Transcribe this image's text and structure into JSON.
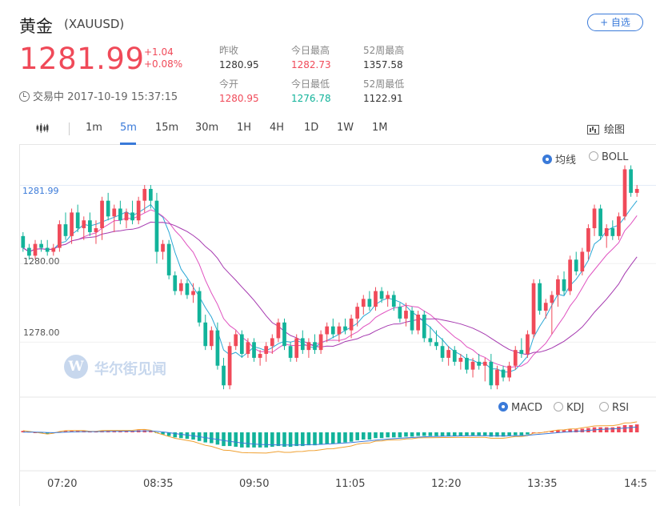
{
  "header": {
    "name": "黄金",
    "code": "(XAUUSD)",
    "watch_label": "+ 自选",
    "price": "1281.99",
    "change": "+1.04",
    "change_pct": "+0.08%",
    "status": "交易中 2017-10-19 15:37:15"
  },
  "stats": [
    {
      "label": "昨收",
      "value": "1280.95"
    },
    {
      "label": "今日最高",
      "value": "1282.73"
    },
    {
      "label": "52周最高",
      "value": "1357.58"
    },
    {
      "label": "今开",
      "value": "1280.95"
    },
    {
      "label": "今日最低",
      "value": "1276.78"
    },
    {
      "label": "52周最低",
      "value": "1122.91"
    }
  ],
  "toolbar": {
    "tabs": [
      "1m",
      "5m",
      "15m",
      "30m",
      "1H",
      "4H",
      "1D",
      "1W",
      "1M"
    ],
    "active_tab": "5m",
    "draw_label": "绘图"
  },
  "overlay_options": [
    "均线",
    "BOLL"
  ],
  "indicator_options": [
    "MACD",
    "KDJ",
    "RSI"
  ],
  "watermark": {
    "text": "华尔街见闻"
  },
  "colors": {
    "up": "#f04a59",
    "down": "#12b39a",
    "accent": "#3a7ad9"
  },
  "chart_data": {
    "type": "candlestick",
    "interval": "5m",
    "current_price": 1281.99,
    "y_ticks": [
      1280.0,
      1278.0
    ],
    "ylim": [
      1276.6,
      1283.0
    ],
    "x_ticks": [
      "07:20",
      "08:35",
      "09:50",
      "11:05",
      "12:20",
      "13:35",
      "14:5"
    ],
    "candles": [
      [
        1280.7,
        1280.8,
        1280.3,
        1280.4
      ],
      [
        1280.4,
        1280.5,
        1280.1,
        1280.2
      ],
      [
        1280.2,
        1280.6,
        1280.1,
        1280.5
      ],
      [
        1280.5,
        1280.6,
        1280.3,
        1280.4
      ],
      [
        1280.4,
        1280.6,
        1280.2,
        1280.3
      ],
      [
        1280.3,
        1280.5,
        1280.2,
        1280.4
      ],
      [
        1280.4,
        1281.1,
        1280.3,
        1281.0
      ],
      [
        1281.0,
        1281.3,
        1280.6,
        1280.7
      ],
      [
        1280.7,
        1281.4,
        1280.5,
        1281.3
      ],
      [
        1281.3,
        1281.5,
        1280.8,
        1280.9
      ],
      [
        1280.9,
        1281.2,
        1280.6,
        1281.1
      ],
      [
        1281.1,
        1281.3,
        1280.7,
        1280.8
      ],
      [
        1280.8,
        1281.1,
        1280.5,
        1280.9
      ],
      [
        1280.9,
        1281.7,
        1280.6,
        1281.6
      ],
      [
        1281.6,
        1281.8,
        1281.1,
        1281.2
      ],
      [
        1281.2,
        1281.5,
        1280.8,
        1281.4
      ],
      [
        1281.4,
        1281.6,
        1281.0,
        1281.1
      ],
      [
        1281.1,
        1281.4,
        1280.9,
        1281.3
      ],
      [
        1281.3,
        1281.6,
        1281.0,
        1281.1
      ],
      [
        1281.1,
        1281.7,
        1281.0,
        1281.6
      ],
      [
        1281.6,
        1282.0,
        1281.3,
        1281.9
      ],
      [
        1281.9,
        1282.0,
        1281.4,
        1281.6
      ],
      [
        1281.6,
        1281.8,
        1280.0,
        1280.3
      ],
      [
        1280.3,
        1280.6,
        1280.1,
        1280.5
      ],
      [
        1280.5,
        1280.6,
        1279.6,
        1279.7
      ],
      [
        1279.7,
        1279.8,
        1279.2,
        1279.3
      ],
      [
        1279.3,
        1279.6,
        1279.2,
        1279.5
      ],
      [
        1279.5,
        1279.6,
        1279.1,
        1279.2
      ],
      [
        1279.2,
        1279.5,
        1279.0,
        1279.3
      ],
      [
        1279.3,
        1279.4,
        1278.4,
        1278.5
      ],
      [
        1278.5,
        1278.7,
        1277.8,
        1277.9
      ],
      [
        1277.9,
        1278.4,
        1277.8,
        1278.3
      ],
      [
        1278.3,
        1278.5,
        1277.3,
        1277.4
      ],
      [
        1277.4,
        1277.6,
        1276.8,
        1276.9
      ],
      [
        1276.9,
        1278.0,
        1276.8,
        1277.9
      ],
      [
        1277.9,
        1278.3,
        1277.8,
        1278.2
      ],
      [
        1278.2,
        1278.3,
        1277.6,
        1277.7
      ],
      [
        1277.7,
        1278.1,
        1277.6,
        1278.0
      ],
      [
        1278.0,
        1278.1,
        1277.5,
        1277.6
      ],
      [
        1277.6,
        1277.8,
        1277.4,
        1277.7
      ],
      [
        1277.7,
        1278.0,
        1277.5,
        1277.9
      ],
      [
        1277.9,
        1278.2,
        1277.7,
        1278.1
      ],
      [
        1278.1,
        1278.6,
        1278.0,
        1278.5
      ],
      [
        1278.5,
        1278.6,
        1277.8,
        1277.9
      ],
      [
        1277.9,
        1278.0,
        1277.5,
        1277.6
      ],
      [
        1277.6,
        1278.2,
        1277.5,
        1278.1
      ],
      [
        1278.1,
        1278.3,
        1277.7,
        1277.8
      ],
      [
        1277.8,
        1278.1,
        1277.6,
        1278.0
      ],
      [
        1278.0,
        1278.2,
        1277.7,
        1277.8
      ],
      [
        1277.8,
        1278.3,
        1277.7,
        1278.2
      ],
      [
        1278.2,
        1278.5,
        1278.0,
        1278.4
      ],
      [
        1278.4,
        1278.6,
        1278.1,
        1278.2
      ],
      [
        1278.2,
        1278.5,
        1278.0,
        1278.4
      ],
      [
        1278.4,
        1278.6,
        1278.2,
        1278.3
      ],
      [
        1278.3,
        1278.7,
        1278.1,
        1278.6
      ],
      [
        1278.6,
        1279.0,
        1278.4,
        1278.9
      ],
      [
        1278.9,
        1279.2,
        1278.7,
        1279.1
      ],
      [
        1279.1,
        1279.3,
        1278.8,
        1278.9
      ],
      [
        1278.9,
        1279.4,
        1278.8,
        1279.3
      ],
      [
        1279.3,
        1279.4,
        1279.0,
        1279.1
      ],
      [
        1279.1,
        1279.3,
        1278.9,
        1279.2
      ],
      [
        1279.2,
        1279.3,
        1278.8,
        1278.9
      ],
      [
        1278.9,
        1279.0,
        1278.5,
        1278.6
      ],
      [
        1278.6,
        1279.0,
        1278.4,
        1278.8
      ],
      [
        1278.8,
        1278.9,
        1278.2,
        1278.3
      ],
      [
        1278.3,
        1278.8,
        1278.2,
        1278.7
      ],
      [
        1278.7,
        1278.8,
        1278.0,
        1278.1
      ],
      [
        1278.1,
        1278.4,
        1277.9,
        1278.0
      ],
      [
        1278.0,
        1278.3,
        1277.8,
        1277.9
      ],
      [
        1277.9,
        1278.1,
        1277.5,
        1277.6
      ],
      [
        1277.6,
        1277.9,
        1277.4,
        1277.8
      ],
      [
        1277.8,
        1277.9,
        1277.4,
        1277.5
      ],
      [
        1277.5,
        1277.7,
        1277.3,
        1277.6
      ],
      [
        1277.6,
        1277.7,
        1277.2,
        1277.3
      ],
      [
        1277.3,
        1277.6,
        1277.1,
        1277.5
      ],
      [
        1277.5,
        1277.7,
        1277.3,
        1277.4
      ],
      [
        1277.4,
        1277.6,
        1277.0,
        1277.5
      ],
      [
        1277.5,
        1277.7,
        1276.8,
        1276.9
      ],
      [
        1276.9,
        1277.4,
        1276.8,
        1277.3
      ],
      [
        1277.3,
        1277.4,
        1277.0,
        1277.1
      ],
      [
        1277.1,
        1277.5,
        1277.0,
        1277.4
      ],
      [
        1277.4,
        1277.9,
        1277.3,
        1277.8
      ],
      [
        1277.8,
        1278.1,
        1277.6,
        1277.7
      ],
      [
        1277.7,
        1278.3,
        1277.6,
        1278.2
      ],
      [
        1278.2,
        1279.6,
        1278.1,
        1279.5
      ],
      [
        1279.5,
        1279.6,
        1278.7,
        1278.8
      ],
      [
        1278.8,
        1279.1,
        1278.6,
        1279.0
      ],
      [
        1279.0,
        1279.3,
        1278.2,
        1279.2
      ],
      [
        1279.2,
        1279.7,
        1278.9,
        1279.6
      ],
      [
        1279.6,
        1279.8,
        1279.2,
        1279.3
      ],
      [
        1279.3,
        1280.2,
        1279.2,
        1280.1
      ],
      [
        1280.1,
        1280.3,
        1279.7,
        1279.8
      ],
      [
        1279.8,
        1280.4,
        1279.7,
        1280.3
      ],
      [
        1280.3,
        1281.0,
        1280.1,
        1280.9
      ],
      [
        1280.9,
        1281.5,
        1280.7,
        1281.4
      ],
      [
        1281.4,
        1281.5,
        1280.6,
        1280.7
      ],
      [
        1280.7,
        1281.0,
        1280.4,
        1280.9
      ],
      [
        1280.9,
        1281.1,
        1280.6,
        1280.7
      ],
      [
        1280.7,
        1281.3,
        1280.6,
        1281.2
      ],
      [
        1281.2,
        1282.5,
        1281.1,
        1282.4
      ],
      [
        1282.4,
        1282.5,
        1281.7,
        1281.8
      ],
      [
        1281.8,
        1282.0,
        1281.7,
        1281.9
      ]
    ],
    "ma_lines": [
      {
        "color": "#2ba7d6",
        "period": 5
      },
      {
        "color": "#e052c0",
        "period": 10
      },
      {
        "color": "#a63ab0",
        "period": 20
      }
    ],
    "macd": {
      "dif_color": "#f0a030",
      "dea_color": "#3a7ad9",
      "histogram": [
        0.02,
        0.01,
        0.0,
        -0.01,
        -0.02,
        -0.01,
        0.01,
        0.02,
        0.02,
        0.02,
        0.02,
        0.01,
        0.01,
        0.02,
        0.02,
        0.02,
        0.02,
        0.02,
        0.02,
        0.03,
        0.03,
        0.02,
        -0.01,
        -0.03,
        -0.05,
        -0.07,
        -0.08,
        -0.09,
        -0.1,
        -0.12,
        -0.14,
        -0.15,
        -0.17,
        -0.19,
        -0.19,
        -0.2,
        -0.21,
        -0.21,
        -0.21,
        -0.21,
        -0.21,
        -0.2,
        -0.19,
        -0.2,
        -0.2,
        -0.19,
        -0.19,
        -0.18,
        -0.18,
        -0.17,
        -0.16,
        -0.16,
        -0.15,
        -0.14,
        -0.13,
        -0.11,
        -0.1,
        -0.1,
        -0.08,
        -0.08,
        -0.07,
        -0.07,
        -0.07,
        -0.06,
        -0.06,
        -0.05,
        -0.05,
        -0.05,
        -0.05,
        -0.05,
        -0.05,
        -0.05,
        -0.05,
        -0.05,
        -0.05,
        -0.05,
        -0.05,
        -0.06,
        -0.06,
        -0.06,
        -0.05,
        -0.04,
        -0.04,
        -0.03,
        0.0,
        0.0,
        0.01,
        0.02,
        0.03,
        0.03,
        0.04,
        0.04,
        0.05,
        0.06,
        0.07,
        0.07,
        0.07,
        0.07,
        0.08,
        0.1,
        0.1,
        0.11
      ]
    }
  }
}
